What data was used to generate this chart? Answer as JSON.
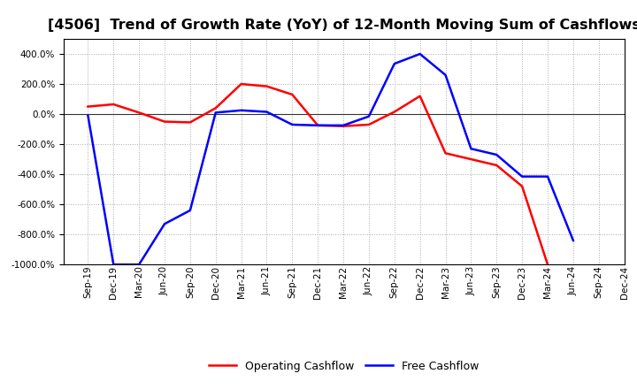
{
  "title": "[4506]  Trend of Growth Rate (YoY) of 12-Month Moving Sum of Cashflows",
  "title_fontsize": 11.5,
  "background_color": "#ffffff",
  "grid_color": "#aaaaaa",
  "x_labels": [
    "Sep-19",
    "Dec-19",
    "Mar-20",
    "Jun-20",
    "Sep-20",
    "Dec-20",
    "Mar-21",
    "Jun-21",
    "Sep-21",
    "Dec-21",
    "Mar-22",
    "Jun-22",
    "Sep-22",
    "Dec-22",
    "Mar-23",
    "Jun-23",
    "Sep-23",
    "Dec-23",
    "Mar-24",
    "Jun-24",
    "Sep-24",
    "Dec-24"
  ],
  "operating_cashflow": [
    50,
    65,
    10,
    -50,
    -55,
    40,
    200,
    185,
    130,
    -75,
    -80,
    -70,
    15,
    120,
    -260,
    -300,
    -340,
    -480,
    -1000,
    null,
    null,
    null
  ],
  "free_cashflow": [
    -10,
    -1000,
    -1000,
    -730,
    -640,
    10,
    25,
    15,
    -70,
    -75,
    -75,
    -15,
    335,
    400,
    260,
    -230,
    -270,
    -415,
    -415,
    -840,
    null,
    null
  ],
  "op_color": "#ff0000",
  "free_color": "#0000ff",
  "ylim": [
    -1000,
    500
  ],
  "yticks": [
    -1000,
    -800,
    -600,
    -400,
    -200,
    0,
    200,
    400
  ],
  "legend_labels": [
    "Operating Cashflow",
    "Free Cashflow"
  ],
  "line_width": 1.8
}
